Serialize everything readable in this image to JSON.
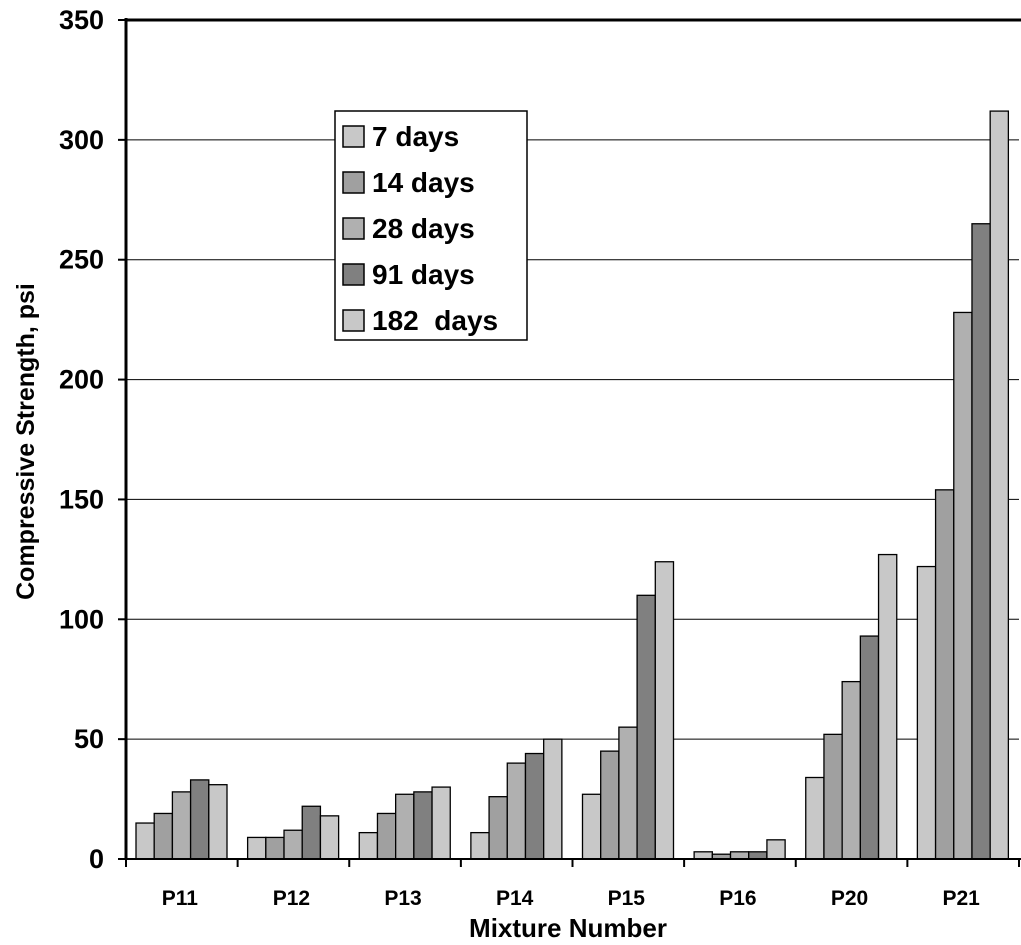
{
  "chart_data": {
    "type": "bar",
    "title": "",
    "xlabel": "Mixture Number",
    "ylabel": "Compressive Strength, psi",
    "ylim": [
      0,
      350
    ],
    "yticks": [
      0,
      50,
      100,
      150,
      200,
      250,
      300,
      350
    ],
    "grid": true,
    "legend_position": "upper-left",
    "categories": [
      "P11",
      "P12",
      "P13",
      "P14",
      "P15",
      "P16",
      "P20",
      "P21"
    ],
    "series": [
      {
        "name": "7 days",
        "color": "#c8c8c8",
        "values": [
          15,
          9,
          11,
          11,
          27,
          3,
          34,
          122
        ]
      },
      {
        "name": "14 days",
        "color": "#a0a0a0",
        "values": [
          19,
          9,
          19,
          26,
          45,
          2,
          52,
          154
        ]
      },
      {
        "name": "28 days",
        "color": "#b0b0b0",
        "values": [
          28,
          12,
          27,
          40,
          55,
          3,
          74,
          228
        ]
      },
      {
        "name": "91 days",
        "color": "#808080",
        "values": [
          33,
          22,
          28,
          44,
          110,
          3,
          93,
          265
        ]
      },
      {
        "name": "182  days",
        "color": "#c8c8c8",
        "values": [
          31,
          18,
          30,
          50,
          124,
          8,
          127,
          312
        ]
      }
    ]
  }
}
